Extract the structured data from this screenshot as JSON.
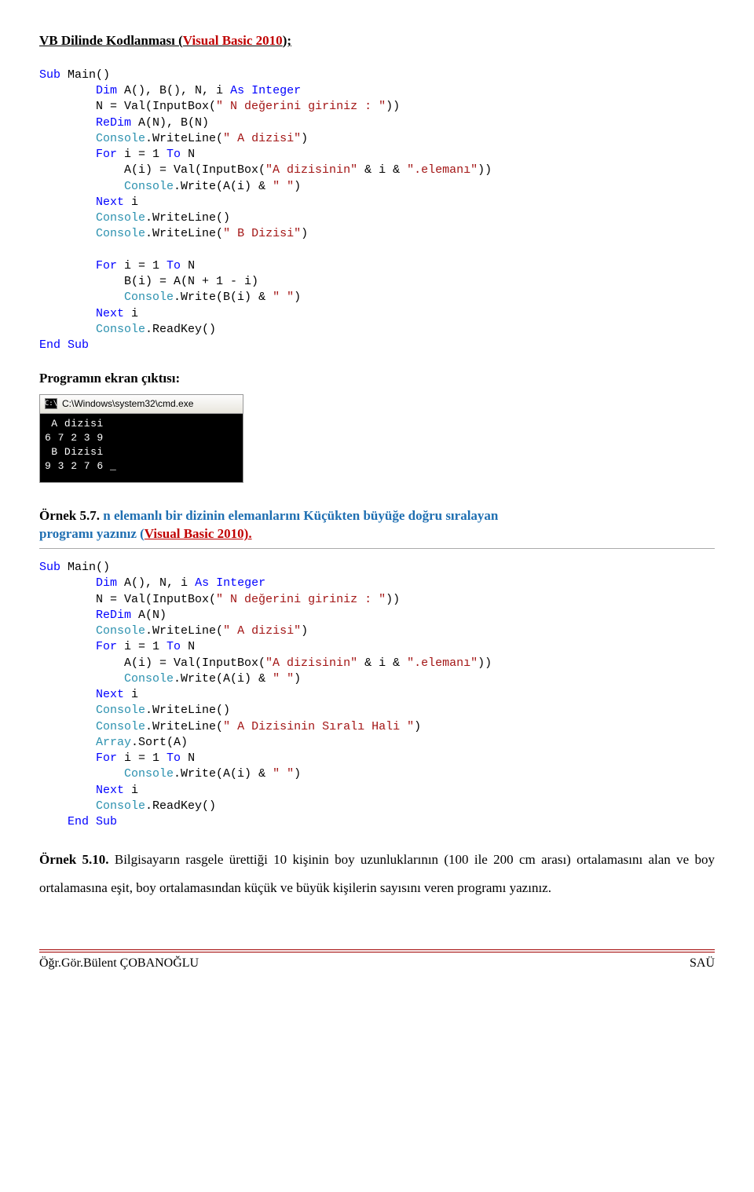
{
  "title": {
    "prefix": "VB Dilinde Kodlanması (",
    "vb": "Visual Basic 2010",
    "suffix": ");"
  },
  "code1": {
    "l1a": "Sub",
    "l1b": " Main()",
    "l2a": "Dim",
    "l2b": " A(), B(), N, i ",
    "l2c": "As",
    "l2d": " ",
    "l2e": "Integer",
    "l3a": "        N = Val(InputBox(",
    "l3b": "\" N değerini giriniz : \"",
    "l3c": "))",
    "l4a": "ReDim",
    "l4b": " A(N), B(N)",
    "l5a": "Console",
    "l5b": ".WriteLine(",
    "l5c": "\" A dizisi\"",
    "l5d": ")",
    "l6a": "For",
    "l6b": " i = 1 ",
    "l6c": "To",
    "l6d": " N",
    "l7a": "            A(i) = Val(InputBox(",
    "l7b": "\"A dizisinin\"",
    "l7c": " & i & ",
    "l7d": "\".elemanı\"",
    "l7e": "))",
    "l8a": "Console",
    "l8b": ".Write(A(i) & ",
    "l8c": "\" \"",
    "l8d": ")",
    "l9a": "Next",
    "l9b": " i",
    "l10a": "Console",
    "l10b": ".WriteLine()",
    "l11a": "Console",
    "l11b": ".WriteLine(",
    "l11c": "\" B Dizisi\"",
    "l11d": ")",
    "l12a": "For",
    "l12b": " i = 1 ",
    "l12c": "To",
    "l12d": " N",
    "l13": "            B(i) = A(N + 1 - i)",
    "l14a": "Console",
    "l14b": ".Write(B(i) & ",
    "l14c": "\" \"",
    "l14d": ")",
    "l15a": "Next",
    "l15b": " i",
    "l16a": "Console",
    "l16b": ".ReadKey()",
    "l17": "End Sub"
  },
  "output_heading": "Programın ekran çıktısı:",
  "console": {
    "title": "C:\\Windows\\system32\\cmd.exe",
    "icon": "C:\\",
    "body": " A dizisi\n6 7 2 3 9\n B Dizisi\n9 3 2 7 6 _"
  },
  "ex57": {
    "label": "Örnek 5.7.  ",
    "desc_a": "n elemanlı bir dizinin elemanlarını Küçükten büyüğe doğru sıralayan ",
    "desc_b": "programı yazınız (",
    "link": "Visual Basic 2010).",
    "suffix": ""
  },
  "code2": {
    "l1a": "Sub",
    "l1b": " Main()",
    "l2a": "Dim",
    "l2b": " A(), N, i ",
    "l2c": "As",
    "l2d": " ",
    "l2e": "Integer",
    "l3a": "        N = Val(InputBox(",
    "l3b": "\" N değerini giriniz : \"",
    "l3c": "))",
    "l4a": "ReDim",
    "l4b": " A(N)",
    "l5a": "Console",
    "l5b": ".WriteLine(",
    "l5c": "\" A dizisi\"",
    "l5d": ")",
    "l6a": "For",
    "l6b": " i = 1 ",
    "l6c": "To",
    "l6d": " N",
    "l7a": "            A(i) = Val(InputBox(",
    "l7b": "\"A dizisinin\"",
    "l7c": " & i & ",
    "l7d": "\".elemanı\"",
    "l7e": "))",
    "l8a": "Console",
    "l8b": ".Write(A(i) & ",
    "l8c": "\" \"",
    "l8d": ")",
    "l9a": "Next",
    "l9b": " i",
    "l10a": "Console",
    "l10b": ".WriteLine()",
    "l11a": "Console",
    "l11b": ".WriteLine(",
    "l11c": "\" A Dizisinin Sıralı Hali \"",
    "l11d": ")",
    "l12a": "Array",
    "l12b": ".Sort(A)",
    "l13a": "For",
    "l13b": " i = 1 ",
    "l13c": "To",
    "l13d": " N",
    "l14a": "Console",
    "l14b": ".Write(A(i) & ",
    "l14c": "\" \"",
    "l14d": ")",
    "l15a": "Next",
    "l15b": " i",
    "l16a": "Console",
    "l16b": ".ReadKey()",
    "l17a": "    ",
    "l17b": "End Sub"
  },
  "ex510": {
    "label": "Örnek 5.10.",
    "body": " Bilgisayarın rasgele ürettiği 10 kişinin boy uzunluklarının (100 ile 200 cm arası) ortalamasını alan ve boy ortalamasına eşit, boy ortalamasından küçük ve büyük kişilerin sayısını veren programı yazınız."
  },
  "footer": {
    "left": "Öğr.Gör.Bülent ÇOBANOĞLU",
    "right": "SAÜ"
  }
}
